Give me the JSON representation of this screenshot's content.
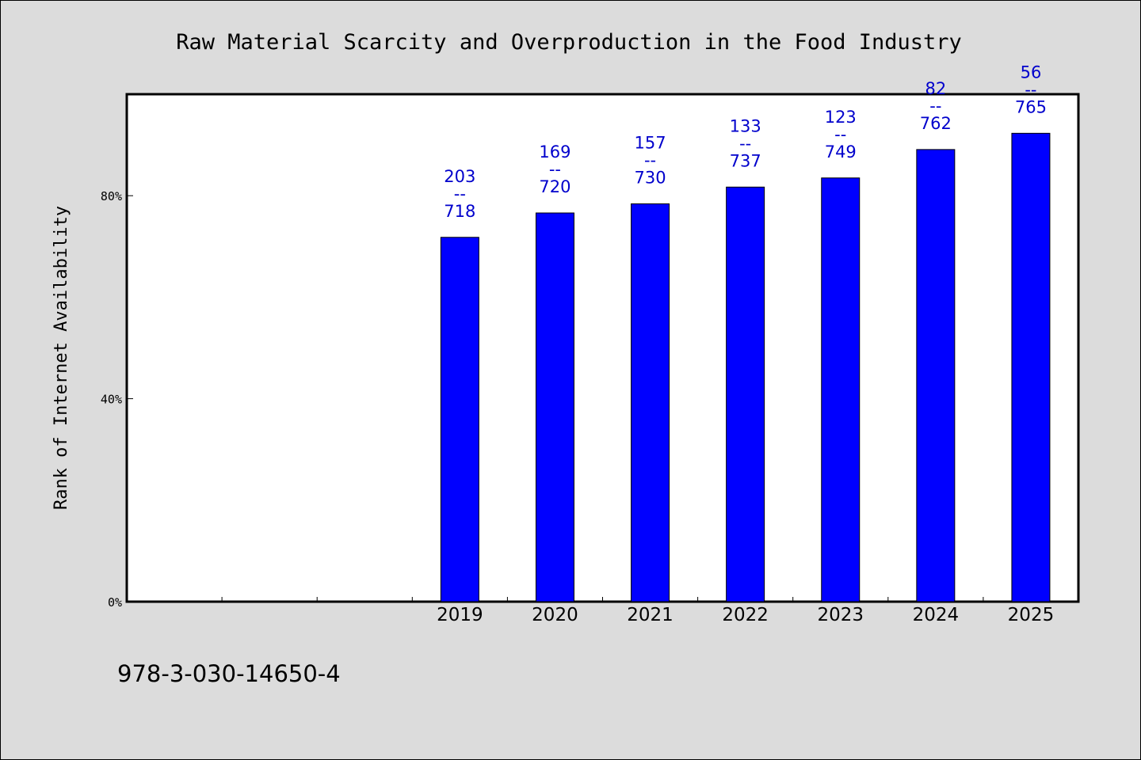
{
  "title": "Raw Material Scarcity and Overproduction in the Food Industry",
  "footer_text": "978-3-030-14650-4",
  "colors": {
    "bar": "#0000ff",
    "data_label": "#0000cc",
    "background": "#dcdcdc",
    "plot_area": "#ffffff"
  },
  "chart_data": {
    "type": "bar",
    "ylabel": "Rank of Internet Availability",
    "categories": [
      "",
      "",
      "",
      "2019",
      "2020",
      "2021",
      "2022",
      "2023",
      "2024",
      "2025"
    ],
    "values": [
      null,
      null,
      null,
      71.8,
      76.6,
      78.4,
      81.7,
      83.5,
      89.1,
      92.3
    ],
    "data_labels": [
      null,
      null,
      null,
      [
        "203",
        "--",
        "718"
      ],
      [
        "169",
        "--",
        "720"
      ],
      [
        "157",
        "--",
        "730"
      ],
      [
        "133",
        "--",
        "737"
      ],
      [
        "123",
        "--",
        "749"
      ],
      [
        "82",
        "--",
        "762"
      ],
      [
        "56",
        "--",
        "765"
      ]
    ],
    "ylim": [
      0,
      100
    ],
    "yticks": [
      0,
      40,
      80
    ],
    "ytick_labels": [
      "0%",
      "40%",
      "80%"
    ],
    "grid": false,
    "legend": "none"
  }
}
